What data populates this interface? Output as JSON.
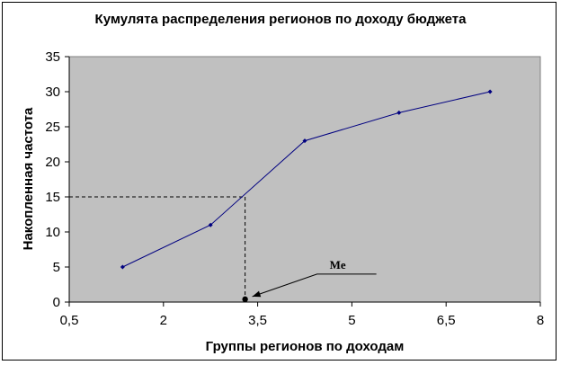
{
  "chart_data": {
    "type": "line",
    "title": "Кумулята распределения регионов по доходу бюджета",
    "xlabel": "Группы регионов по доходам",
    "ylabel": "Накопленная частота",
    "xlim": [
      0.5,
      8
    ],
    "ylim": [
      0,
      35
    ],
    "x_ticks": [
      "0,5",
      "2",
      "3,5",
      "5",
      "6,5",
      "8"
    ],
    "x_tick_values": [
      0.5,
      2,
      3.5,
      5,
      6.5,
      8
    ],
    "y_ticks": [
      "0",
      "5",
      "10",
      "15",
      "20",
      "25",
      "30",
      "35"
    ],
    "y_tick_values": [
      0,
      5,
      10,
      15,
      20,
      25,
      30,
      35
    ],
    "grid": false,
    "series": [
      {
        "x": [
          1.35,
          2.75,
          4.25,
          5.75,
          7.2
        ],
        "y": [
          5,
          11,
          23,
          27,
          30
        ]
      }
    ],
    "median": {
      "x": 3.3,
      "y": 15
    },
    "annotation": {
      "label": "Me",
      "x": 3.3,
      "y": 0.4
    },
    "colors": {
      "series": "#000080",
      "plot_bg": "#c0c0c0"
    }
  }
}
